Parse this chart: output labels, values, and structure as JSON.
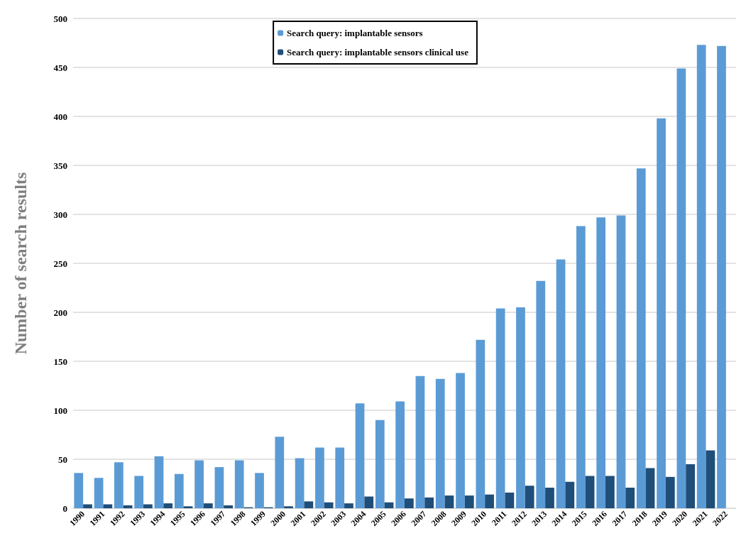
{
  "chart_data": {
    "type": "bar",
    "ylabel": "Number of search results",
    "categories": [
      "1990",
      "1991",
      "1992",
      "1993",
      "1994",
      "1995",
      "1996",
      "1997",
      "1998",
      "1999",
      "2000",
      "2001",
      "2002",
      "2003",
      "2004",
      "2005",
      "2006",
      "2007",
      "2008",
      "2009",
      "2010",
      "2011",
      "2012",
      "2013",
      "2014",
      "2015",
      "2016",
      "2017",
      "2018",
      "2019",
      "2020",
      "2021",
      "2022"
    ],
    "series": [
      {
        "name": "Search query: implantable sensors",
        "color": "#5b9bd5",
        "values": [
          36,
          31,
          47,
          33,
          53,
          35,
          49,
          42,
          49,
          36,
          73,
          51,
          62,
          62,
          107,
          90,
          109,
          135,
          132,
          138,
          172,
          204,
          205,
          232,
          254,
          288,
          297,
          299,
          347,
          398,
          449,
          473,
          472
        ]
      },
      {
        "name": "Search query: implantable sensors clinical use",
        "color": "#1f4e79",
        "values": [
          4,
          4,
          3,
          4,
          5,
          2,
          5,
          3,
          1,
          1,
          2,
          7,
          6,
          5,
          12,
          6,
          10,
          11,
          13,
          13,
          14,
          16,
          23,
          21,
          27,
          33,
          33,
          21,
          41,
          32,
          45,
          59,
          null
        ]
      }
    ],
    "ylim": [
      0,
      500
    ],
    "yticks": [
      0,
      50,
      100,
      150,
      200,
      250,
      300,
      350,
      400,
      450,
      500
    ],
    "grid": "y",
    "legend": "top"
  }
}
